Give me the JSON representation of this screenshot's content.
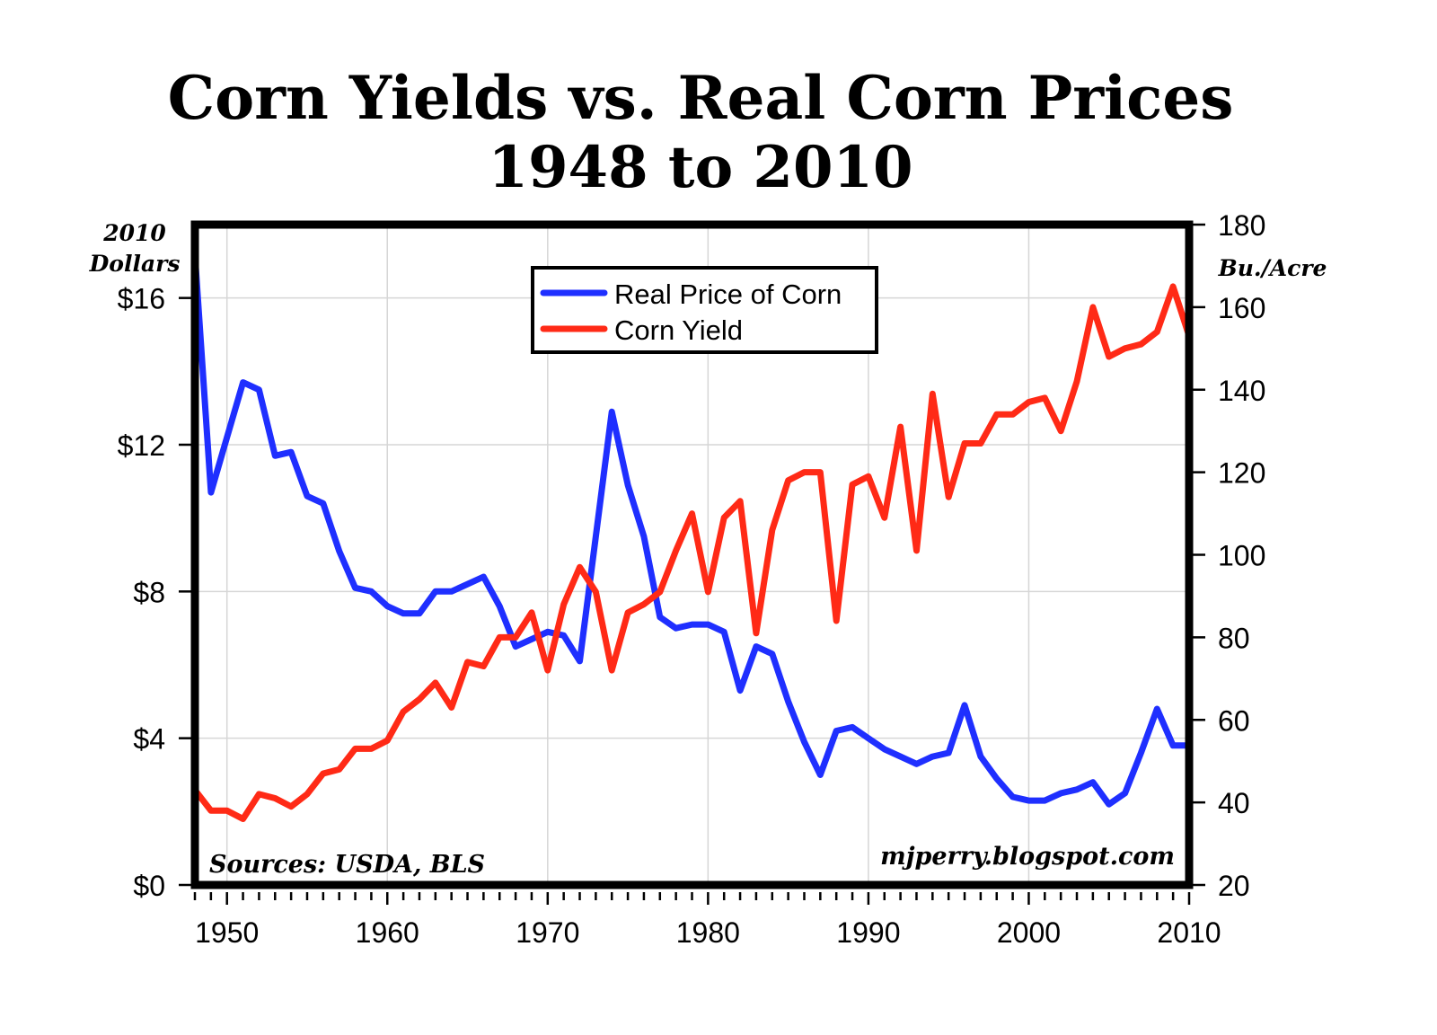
{
  "chart_data": {
    "type": "line",
    "title": "Corn Yields vs. Real Corn Prices",
    "subtitle": "1948 to 2010",
    "y_left_label": [
      "2010",
      "Dollars"
    ],
    "y_right_label": "Bu./Acre",
    "source_note": "Sources: USDA, BLS",
    "watermark": "mjperry.blogspot.com",
    "x_range": [
      1948,
      2010
    ],
    "x_ticks": [
      1950,
      1960,
      1970,
      1980,
      1990,
      2000,
      2010
    ],
    "y_left_range": [
      0,
      18
    ],
    "y_left_ticks": [
      {
        "value": 0,
        "label": "$0"
      },
      {
        "value": 4,
        "label": "$4"
      },
      {
        "value": 8,
        "label": "$8"
      },
      {
        "value": 12,
        "label": "$12"
      },
      {
        "value": 16,
        "label": "$16"
      }
    ],
    "y_right_range": [
      20,
      180
    ],
    "y_right_ticks": [
      20,
      40,
      60,
      80,
      100,
      120,
      140,
      160,
      180
    ],
    "grid": true,
    "legend_position": "top-center",
    "x": [
      1948,
      1949,
      1950,
      1951,
      1952,
      1953,
      1954,
      1955,
      1956,
      1957,
      1958,
      1959,
      1960,
      1961,
      1962,
      1963,
      1964,
      1965,
      1966,
      1967,
      1968,
      1969,
      1970,
      1971,
      1972,
      1973,
      1974,
      1975,
      1976,
      1977,
      1978,
      1979,
      1980,
      1981,
      1982,
      1983,
      1984,
      1985,
      1986,
      1987,
      1988,
      1989,
      1990,
      1991,
      1992,
      1993,
      1994,
      1995,
      1996,
      1997,
      1998,
      1999,
      2000,
      2001,
      2002,
      2003,
      2004,
      2005,
      2006,
      2007,
      2008,
      2009,
      2010
    ],
    "series": [
      {
        "name": "Real Price of Corn",
        "axis": "left",
        "color": "#1f2fff",
        "values": [
          17.2,
          10.7,
          12.2,
          13.7,
          13.5,
          11.7,
          11.8,
          10.6,
          10.4,
          9.1,
          8.1,
          8.0,
          7.6,
          7.4,
          7.4,
          8.0,
          8.0,
          8.2,
          8.4,
          7.6,
          6.5,
          6.7,
          6.9,
          6.8,
          6.1,
          9.5,
          12.9,
          10.9,
          9.5,
          7.3,
          7.0,
          7.1,
          7.1,
          6.9,
          5.3,
          6.5,
          6.3,
          5.0,
          3.9,
          3.0,
          4.2,
          4.3,
          4.0,
          3.7,
          3.5,
          3.3,
          3.5,
          3.6,
          4.9,
          3.5,
          2.9,
          2.4,
          2.3,
          2.3,
          2.5,
          2.6,
          2.8,
          2.2,
          2.5,
          3.6,
          4.8,
          3.8,
          3.8
        ]
      },
      {
        "name": "Corn Yield",
        "axis": "right",
        "color": "#ff2a16",
        "values": [
          43,
          38,
          38,
          36,
          42,
          41,
          39,
          42,
          47,
          48,
          53,
          53,
          55,
          62,
          65,
          69,
          63,
          74,
          73,
          80,
          80,
          86,
          72,
          88,
          97,
          91,
          72,
          86,
          88,
          91,
          101,
          110,
          91,
          109,
          113,
          81,
          106,
          118,
          120,
          120,
          84,
          117,
          119,
          109,
          131,
          101,
          139,
          114,
          127,
          127,
          134,
          134,
          137,
          138,
          130,
          142,
          160,
          148,
          150,
          151,
          154,
          165,
          153
        ]
      }
    ]
  }
}
